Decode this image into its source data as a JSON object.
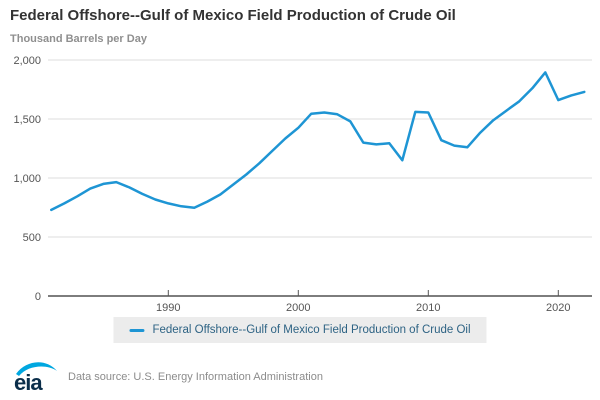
{
  "header": {
    "title": "Federal Offshore--Gulf of Mexico Field Production of Crude Oil",
    "subtitle": "Thousand Barrels per Day"
  },
  "legend": {
    "label": "Federal Offshore--Gulf of Mexico Field Production of Crude Oil"
  },
  "footer": {
    "logo_text": "eia",
    "source": "Data source: U.S. Energy Information Administration"
  },
  "colors": {
    "line": "#1e95d4",
    "title_text": "#333333",
    "subtitle_text": "#8f8f8f",
    "gridline": "#dcdcdc",
    "zero_axis": "#7d7d7d",
    "tick_text": "#555555",
    "legend_bg": "#ececec",
    "legend_text": "#2e6384",
    "logo_navy": "#0b2e4a",
    "logo_swoosh": "#00a7e0"
  },
  "chart_data": {
    "type": "line",
    "title": "Federal Offshore--Gulf of Mexico Field Production of Crude Oil",
    "xlabel": "",
    "ylabel": "Thousand Barrels per Day",
    "legend_position": "bottom",
    "grid": "horizontal",
    "xlim": [
      1981,
      2022
    ],
    "ylim": [
      0,
      2000
    ],
    "yticks": [
      0,
      500,
      1000,
      1500,
      2000
    ],
    "ytick_labels": [
      "0",
      "500",
      "1,000",
      "1,500",
      "2,000"
    ],
    "xticks": [
      1990,
      2000,
      2010,
      2020
    ],
    "xtick_labels": [
      "1990",
      "2000",
      "2010",
      "2020"
    ],
    "x": [
      1981,
      1982,
      1983,
      1984,
      1985,
      1986,
      1987,
      1988,
      1989,
      1990,
      1991,
      1992,
      1993,
      1994,
      1995,
      1996,
      1997,
      1998,
      1999,
      2000,
      2001,
      2002,
      2003,
      2004,
      2005,
      2006,
      2007,
      2008,
      2009,
      2010,
      2011,
      2012,
      2013,
      2014,
      2015,
      2016,
      2017,
      2018,
      2019,
      2020,
      2021,
      2022
    ],
    "series": [
      {
        "name": "Federal Offshore--Gulf of Mexico Field Production of Crude Oil",
        "values": [
          730,
          785,
          845,
          910,
          950,
          965,
          920,
          865,
          818,
          785,
          760,
          748,
          800,
          860,
          945,
          1030,
          1125,
          1230,
          1335,
          1425,
          1545,
          1555,
          1540,
          1480,
          1300,
          1285,
          1295,
          1150,
          1560,
          1555,
          1320,
          1275,
          1260,
          1385,
          1490,
          1570,
          1650,
          1760,
          1895,
          1660,
          1700,
          1730
        ]
      }
    ]
  }
}
